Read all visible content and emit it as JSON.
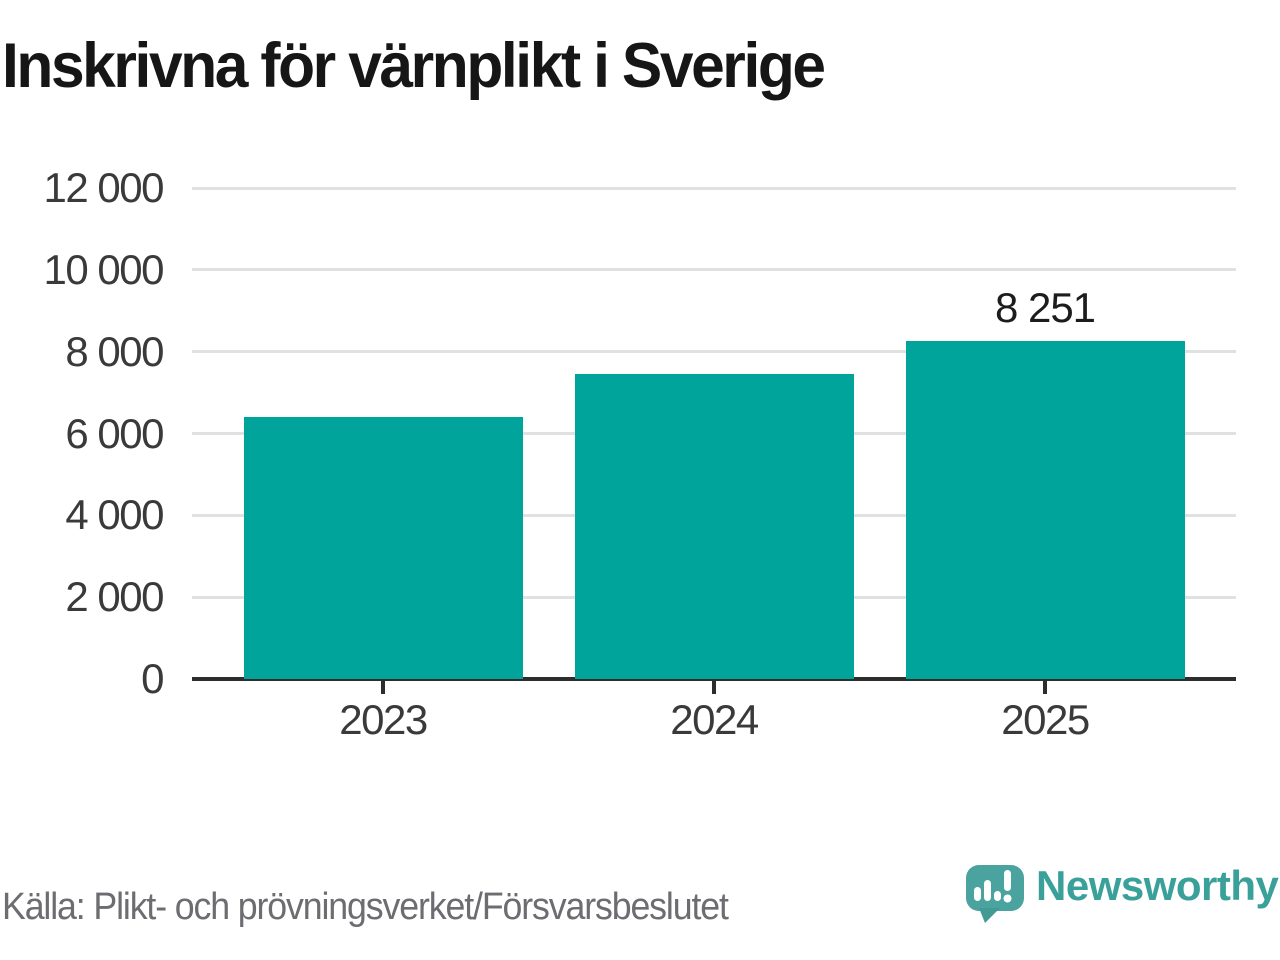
{
  "page": {
    "title": "Inskrivna för värnplikt i Sverige"
  },
  "footer": {
    "source": "Källa: Plikt- och prövningsverket/Försvarsbeslutet"
  },
  "branding": {
    "name": "Newsworthy",
    "mark_icon": "speech-bubble-bar-chart-exclamation-icon"
  },
  "colors": {
    "bar": "#00a49a",
    "axis": "#2d2d2d",
    "gridline": "#e1e1e1",
    "tick_label": "#3a3a3a",
    "title": "#161616",
    "annotation": "#1c1c1c",
    "source_text": "#6c6c71",
    "logo_mark": "#4aa39e",
    "logo_text": "#3aa09a",
    "background": "#ffffff"
  },
  "chart_data": {
    "type": "bar",
    "title": "Inskrivna för värnplikt i Sverige",
    "categories": [
      "2023",
      "2024",
      "2025"
    ],
    "values": [
      6400,
      7450,
      8251
    ],
    "value_labels": [
      null,
      null,
      "8 251"
    ],
    "y_tick_values": [
      0,
      2000,
      4000,
      6000,
      8000,
      10000,
      12000
    ],
    "y_tick_labels": [
      "0",
      "2 000",
      "4 000",
      "6 000",
      "8 000",
      "10 000",
      "12 000"
    ],
    "ylim": [
      0,
      12000
    ],
    "xlabel": "",
    "ylabel": "",
    "grid": "horizontal-only",
    "legend": "none",
    "bar_color": "#00a49a"
  }
}
